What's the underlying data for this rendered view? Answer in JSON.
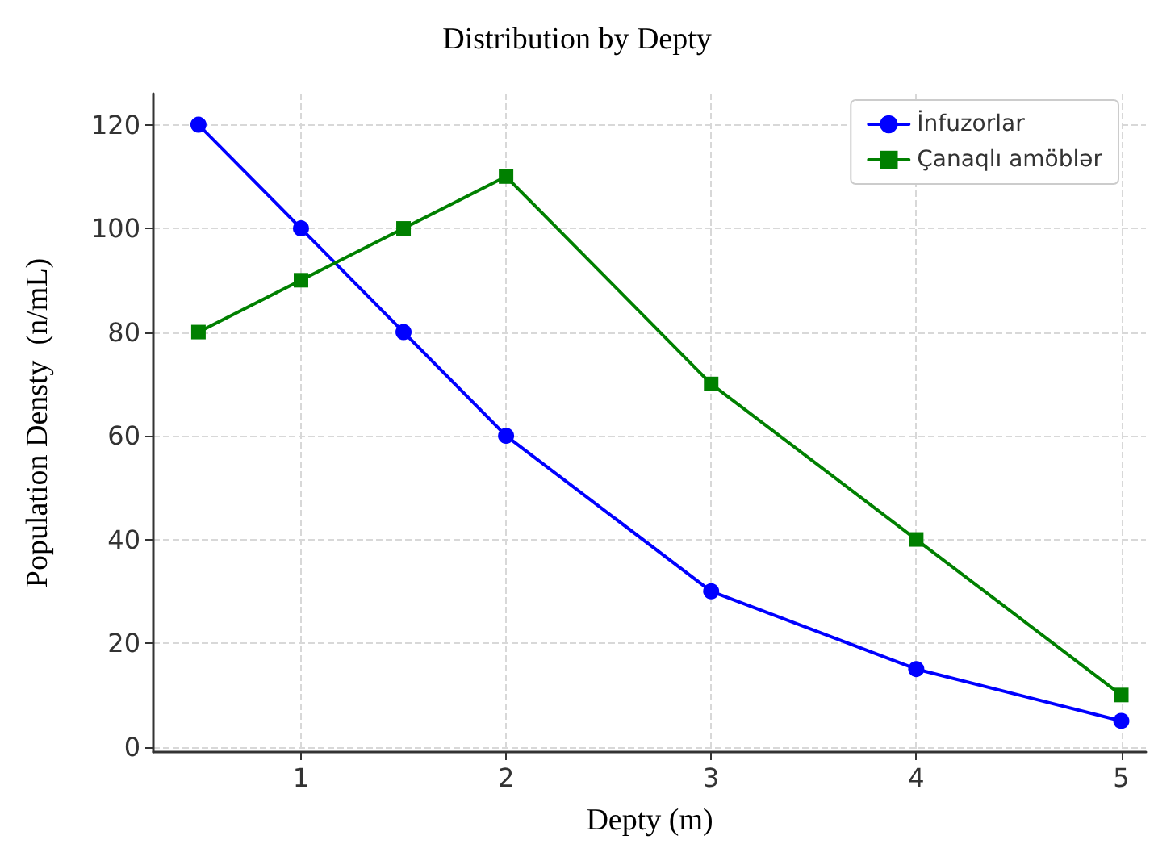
{
  "chart_data": {
    "type": "line",
    "title": "Distribution by Depty",
    "xlabel": "Depty (m)",
    "ylabel": "Population Densty  (n/mL)",
    "x": [
      0.5,
      1,
      1.5,
      2,
      3,
      4,
      5
    ],
    "series": [
      {
        "name": "İnfuzorlar",
        "color": "#0000ff",
        "marker": "circle",
        "values": [
          120,
          100,
          80,
          60,
          30,
          15,
          5
        ]
      },
      {
        "name": "Çanaqlı amöblər",
        "color": "#008000",
        "marker": "square",
        "values": [
          80,
          90,
          100,
          110,
          70,
          40,
          10
        ]
      }
    ],
    "xlim": [
      0.28,
      5.12
    ],
    "ylim": [
      -1,
      126
    ],
    "xticks": [
      1,
      2,
      3,
      4,
      5
    ],
    "yticks": [
      0,
      20,
      40,
      60,
      80,
      100,
      120
    ],
    "grid": true,
    "legend": "top right",
    "line_style": "solid"
  }
}
